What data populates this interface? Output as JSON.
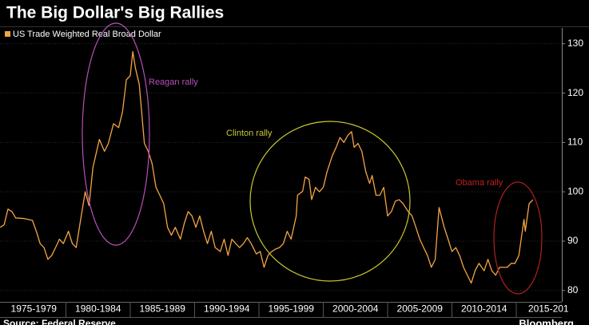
{
  "chart_data": {
    "type": "line",
    "title": "The Big Dollar's Big Rallies",
    "source": "Source: Federal Reserve",
    "brand": "Bloomberg",
    "annotations": [
      "Reagan rally",
      "Clinton rally",
      "Obama rally"
    ],
    "categories": [
      "1975-1979",
      "1980-1984",
      "1985-1989",
      "1990-1994",
      "1995-1999",
      "2000-2004",
      "2005-2009",
      "2010-2014",
      "2015-201"
    ],
    "series": [
      {
        "name": "US Trade Weighted Real Broad Dollar",
        "color": "#f5a445",
        "x": [
          1974.9,
          1975.2,
          1975.5,
          1975.8,
          1976.1,
          1976.7,
          1977.4,
          1977.7,
          1978.0,
          1978.3,
          1978.6,
          1978.9,
          1979.2,
          1979.5,
          1979.8,
          1980.2,
          1980.5,
          1980.8,
          1981.1,
          1981.5,
          1981.8,
          1982.1,
          1982.6,
          1983.0,
          1983.3,
          1983.7,
          1984.1,
          1984.4,
          1984.7,
          1985.0,
          1985.2,
          1985.4,
          1985.7,
          1986.1,
          1986.4,
          1986.7,
          1987.0,
          1987.3,
          1987.6,
          1987.9,
          1988.2,
          1988.5,
          1988.9,
          1989.2,
          1989.5,
          1989.8,
          1990.1,
          1990.4,
          1990.7,
          1991.0,
          1991.3,
          1991.6,
          1992.0,
          1992.3,
          1992.6,
          1992.9,
          1993.2,
          1993.5,
          1993.8,
          1994.1,
          1994.4,
          1994.8,
          1995.1,
          1995.4,
          1995.7,
          1996.0,
          1996.3,
          1996.6,
          1996.9,
          1997.2,
          1997.5,
          1997.9,
          1998.0,
          1998.4,
          1998.6,
          1998.9,
          1999.1,
          1999.4,
          1999.7,
          2000.0,
          2000.3,
          2000.7,
          2001.0,
          2001.3,
          2001.6,
          2001.9,
          2002.2,
          2002.4,
          2002.7,
          2003.0,
          2003.3,
          2003.6,
          2003.8,
          2004.1,
          2004.4,
          2004.7,
          2005.0,
          2005.3,
          2005.6,
          2005.9,
          2006.2,
          2006.6,
          2006.9,
          2007.2,
          2007.5,
          2007.8,
          2008.1,
          2008.4,
          2008.7,
          2009.0,
          2009.4,
          2009.7,
          2010.0,
          2010.3,
          2010.6,
          2010.9,
          2011.2,
          2011.5,
          2011.8,
          2012.1,
          2012.5,
          2012.8,
          2013.1,
          2013.4,
          2013.7,
          2014.0,
          2014.3,
          2014.6,
          2014.9,
          2015.2,
          2015.6,
          2015.7,
          2016.0,
          2016.3
        ],
        "values": [
          92.8,
          93.3,
          96.5,
          96.0,
          94.7,
          94.6,
          94.2,
          92.0,
          89.5,
          88.7,
          86.3,
          87.1,
          88.7,
          90.4,
          89.5,
          92.0,
          89.5,
          88.7,
          93.6,
          100.0,
          97.2,
          104.9,
          110.6,
          108.2,
          109.8,
          113.8,
          113.0,
          116.2,
          122.7,
          123.5,
          128.4,
          125.1,
          121.8,
          109.8,
          108.2,
          105.7,
          100.9,
          99.3,
          97.6,
          92.8,
          91.2,
          92.8,
          90.4,
          93.6,
          96.0,
          95.1,
          92.8,
          95.1,
          92.0,
          89.5,
          92.0,
          88.7,
          87.9,
          90.4,
          87.1,
          90.4,
          89.5,
          88.7,
          89.5,
          90.7,
          89.5,
          87.4,
          87.9,
          84.7,
          87.1,
          87.9,
          88.4,
          88.7,
          89.5,
          92.0,
          90.4,
          95.1,
          99.3,
          100.1,
          103.0,
          102.5,
          98.4,
          100.9,
          100.0,
          100.9,
          104.1,
          107.3,
          109.0,
          111.0,
          110.0,
          111.4,
          112.2,
          109.0,
          109.8,
          108.2,
          104.1,
          101.7,
          103.3,
          99.3,
          99.3,
          100.9,
          95.1,
          96.0,
          98.1,
          98.4,
          97.6,
          96.0,
          95.1,
          92.8,
          90.4,
          88.7,
          87.1,
          84.7,
          86.3,
          96.8,
          92.8,
          90.4,
          87.9,
          88.7,
          87.1,
          84.7,
          83.1,
          81.5,
          84.0,
          85.5,
          84.0,
          86.3,
          84.0,
          83.1,
          84.7,
          84.7,
          84.7,
          85.5,
          85.5,
          87.1,
          94.4,
          92.0,
          97.6,
          98.4
        ]
      }
    ],
    "xlim": [
      1974.88,
      2018.54
    ],
    "ylim": [
      77.7,
      133.2
    ],
    "yticks": [
      80,
      90,
      100,
      110,
      120,
      130
    ],
    "grid": true
  }
}
